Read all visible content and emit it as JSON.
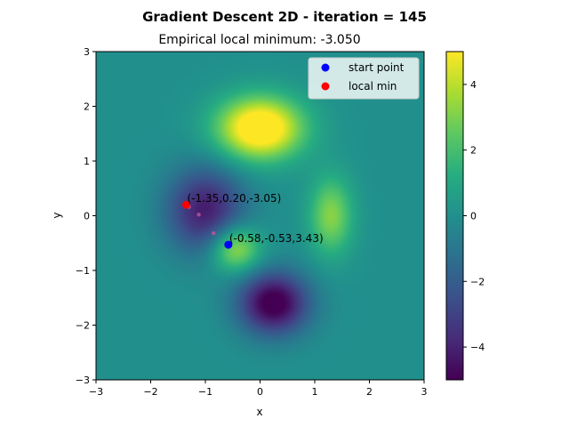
{
  "chart_data": {
    "type": "heatmap",
    "title": "Gradient Descent 2D - iteration = 145",
    "subtitle": "Empirical local minimum: -3.050",
    "xlabel": "x",
    "ylabel": "y",
    "xlim": [
      -3,
      3
    ],
    "ylim": [
      -3,
      3
    ],
    "x_ticks": [
      -3,
      -2,
      -1,
      0,
      1,
      2,
      3
    ],
    "y_ticks": [
      -3,
      -2,
      -1,
      0,
      1,
      2,
      3
    ],
    "colorbar": {
      "colormap": "viridis",
      "range": [
        -5,
        5
      ],
      "ticks": [
        -4,
        -2,
        0,
        2,
        4
      ]
    },
    "legend": {
      "placement": "upper-right",
      "entries": [
        {
          "label": "start point",
          "color": "#0000ff"
        },
        {
          "label": "local min",
          "color": "#ff0000"
        }
      ]
    },
    "series": [
      {
        "role": "start",
        "x": -0.58,
        "y": -0.53,
        "z": 3.43,
        "color": "#0000ff",
        "annotation": "(-0.58,-0.53,3.43)"
      },
      {
        "role": "min",
        "x": -1.35,
        "y": 0.2,
        "z": -3.05,
        "color": "#ff0000",
        "annotation": "(-1.35,0.20,-3.05)"
      }
    ],
    "path": [
      {
        "x": -0.58,
        "y": -0.53
      },
      {
        "x": -0.85,
        "y": -0.32
      },
      {
        "x": -1.12,
        "y": 0.02
      },
      {
        "x": -1.3,
        "y": 0.16
      },
      {
        "x": -1.35,
        "y": 0.2
      }
    ],
    "path_color": "#c0559a",
    "grid": false
  }
}
